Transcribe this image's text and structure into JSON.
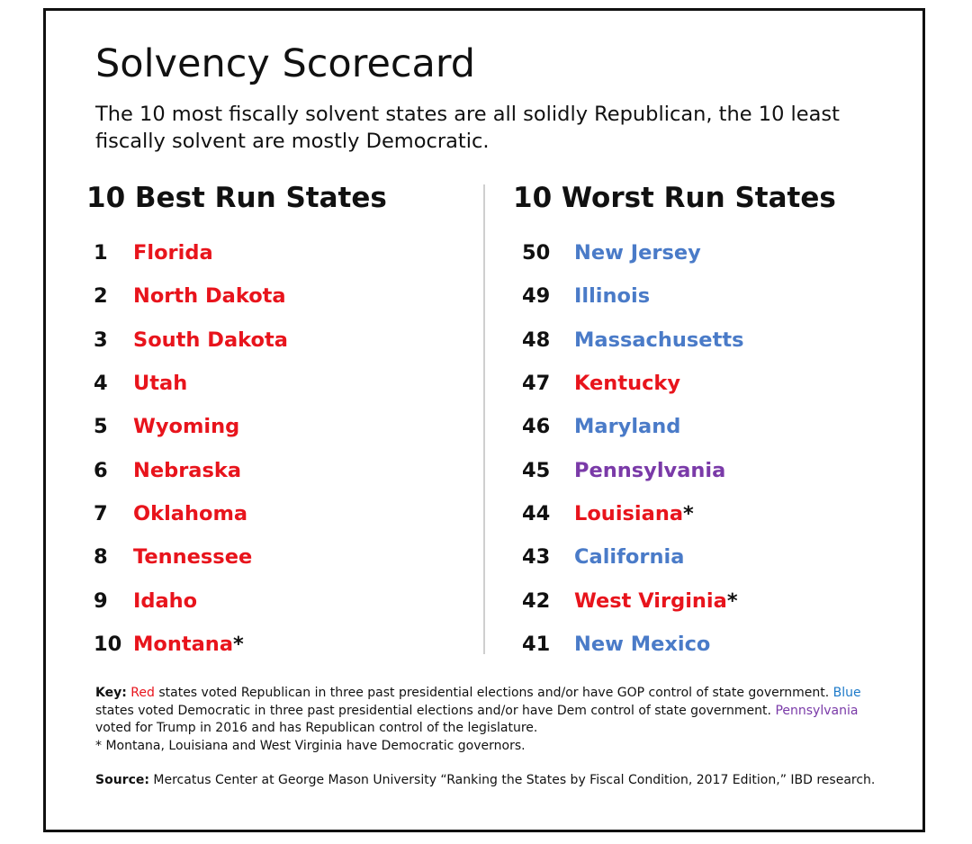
{
  "title": "Solvency Scorecard",
  "subtitle": "The 10 most fiscally solvent states are all solidly Republican, the 10 least fiscally solvent are mostly Democratic.",
  "colors": {
    "red": "#e8141c",
    "blue": "#4a7bc8",
    "purple": "#7a3aa8",
    "text": "#111111"
  },
  "best": {
    "heading": "10 Best Run States",
    "items": [
      {
        "rank": "1",
        "name": "Florida",
        "color": "red",
        "star": ""
      },
      {
        "rank": "2",
        "name": "North Dakota",
        "color": "red",
        "star": ""
      },
      {
        "rank": "3",
        "name": "South Dakota",
        "color": "red",
        "star": ""
      },
      {
        "rank": "4",
        "name": "Utah",
        "color": "red",
        "star": ""
      },
      {
        "rank": "5",
        "name": "Wyoming",
        "color": "red",
        "star": ""
      },
      {
        "rank": "6",
        "name": "Nebraska",
        "color": "red",
        "star": ""
      },
      {
        "rank": "7",
        "name": "Oklahoma",
        "color": "red",
        "star": ""
      },
      {
        "rank": "8",
        "name": "Tennessee",
        "color": "red",
        "star": ""
      },
      {
        "rank": "9",
        "name": "Idaho",
        "color": "red",
        "star": ""
      },
      {
        "rank": "10",
        "name": "Montana",
        "color": "red",
        "star": "*"
      }
    ]
  },
  "worst": {
    "heading": "10 Worst Run States",
    "items": [
      {
        "rank": "50",
        "name": "New Jersey",
        "color": "blue",
        "star": ""
      },
      {
        "rank": "49",
        "name": "Illinois",
        "color": "blue",
        "star": ""
      },
      {
        "rank": "48",
        "name": "Massachusetts",
        "color": "blue",
        "star": ""
      },
      {
        "rank": "47",
        "name": "Kentucky",
        "color": "red",
        "star": ""
      },
      {
        "rank": "46",
        "name": "Maryland",
        "color": "blue",
        "star": ""
      },
      {
        "rank": "45",
        "name": "Pennsylvania",
        "color": "purple",
        "star": ""
      },
      {
        "rank": "44",
        "name": "Louisiana",
        "color": "red",
        "star": "*"
      },
      {
        "rank": "43",
        "name": "California",
        "color": "blue",
        "star": ""
      },
      {
        "rank": "42",
        "name": "West Virginia",
        "color": "red",
        "star": "*"
      },
      {
        "rank": "41",
        "name": "New Mexico",
        "color": "blue",
        "star": ""
      }
    ]
  },
  "key": {
    "label": "Key:",
    "red_word": "Red",
    "red_text": " states voted Republican in three past presidential elections and/or have GOP control of state government. ",
    "blue_word": "Blue",
    "blue_text": " states voted Democratic in three past presidential elections and/or have Dem control of state government. ",
    "purple_word": "Pennsylvania",
    "purple_text": " voted for Trump in 2016 and has Republican control of the legislature.",
    "footnote": "* Montana, Louisiana and West Virginia have Democratic governors."
  },
  "source": {
    "label": "Source:",
    "text": " Mercatus Center at George Mason University  “Ranking the States by Fiscal Condition, 2017 Edition,” IBD research."
  }
}
